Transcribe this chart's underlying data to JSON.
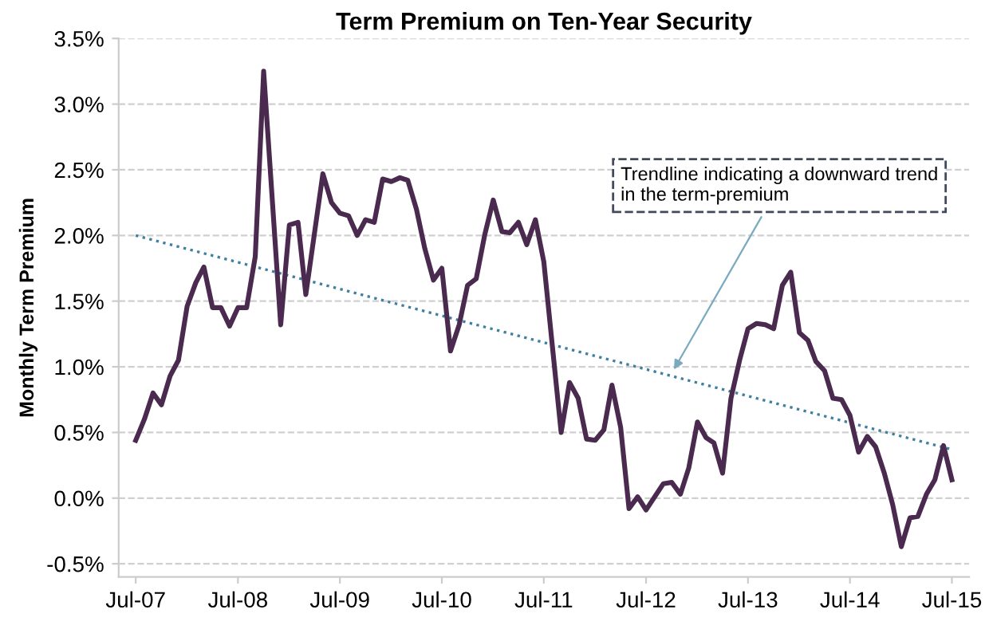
{
  "chart_data": {
    "type": "line",
    "title": "Term Premium on Ten-Year Security",
    "ylabel": "Monthly Term Premium",
    "xlim": [
      "2007-05",
      "2015-09"
    ],
    "ylim": [
      -0.6,
      3.5
    ],
    "xticks": [
      {
        "value": "2007-07",
        "label": "Jul-07"
      },
      {
        "value": "2008-07",
        "label": "Jul-08"
      },
      {
        "value": "2009-07",
        "label": "Jul-09"
      },
      {
        "value": "2010-07",
        "label": "Jul-10"
      },
      {
        "value": "2011-07",
        "label": "Jul-11"
      },
      {
        "value": "2012-07",
        "label": "Jul-12"
      },
      {
        "value": "2013-07",
        "label": "Jul-13"
      },
      {
        "value": "2014-07",
        "label": "Jul-14"
      },
      {
        "value": "2015-07",
        "label": "Jul-15"
      }
    ],
    "yticks": [
      {
        "value": -0.5,
        "label": "-0.5%"
      },
      {
        "value": 0,
        "label": "0.0%"
      },
      {
        "value": 0.5,
        "label": "0.5%"
      },
      {
        "value": 1,
        "label": "1.0%"
      },
      {
        "value": 1.5,
        "label": "1.5%"
      },
      {
        "value": 2,
        "label": "2.0%"
      },
      {
        "value": 2.5,
        "label": "2.5%"
      },
      {
        "value": 3,
        "label": "3.0%"
      },
      {
        "value": 3.5,
        "label": "3.5%"
      }
    ],
    "grid": "y",
    "legend": false,
    "marker": "none",
    "series": [
      {
        "color": "#4b2a4f",
        "line_style": "solid",
        "x": [
          "2007-07",
          "2007-08",
          "2007-09",
          "2007-10",
          "2007-11",
          "2007-12",
          "2008-01",
          "2008-02",
          "2008-03",
          "2008-04",
          "2008-05",
          "2008-06",
          "2008-07",
          "2008-08",
          "2008-09",
          "2008-10",
          "2008-12",
          "2009-01",
          "2009-02",
          "2009-03",
          "2009-05",
          "2009-06",
          "2009-07",
          "2009-08",
          "2009-09",
          "2009-10",
          "2009-11",
          "2009-12",
          "2010-01",
          "2010-02",
          "2010-03",
          "2010-04",
          "2010-05",
          "2010-06",
          "2010-07",
          "2010-08",
          "2010-09",
          "2010-10",
          "2010-11",
          "2010-12",
          "2011-01",
          "2011-02",
          "2011-03",
          "2011-04",
          "2011-05",
          "2011-06",
          "2011-07",
          "2011-08",
          "2011-09",
          "2011-10",
          "2011-11",
          "2011-12",
          "2012-01",
          "2012-02",
          "2012-03",
          "2012-04",
          "2012-05",
          "2012-06",
          "2012-07",
          "2012-08",
          "2012-09",
          "2012-10",
          "2012-11",
          "2012-12",
          "2013-01",
          "2013-02",
          "2013-03",
          "2013-04",
          "2013-05",
          "2013-06",
          "2013-07",
          "2013-08",
          "2013-09",
          "2013-10",
          "2013-11",
          "2013-12",
          "2014-01",
          "2014-02",
          "2014-03",
          "2014-04",
          "2014-05",
          "2014-06",
          "2014-07",
          "2014-08",
          "2014-09",
          "2014-10",
          "2014-11",
          "2014-12",
          "2015-01",
          "2015-02",
          "2015-03",
          "2015-04",
          "2015-05",
          "2015-06",
          "2015-07"
        ],
        "values": [
          0.44,
          0.6,
          0.8,
          0.71,
          0.93,
          1.05,
          1.46,
          1.64,
          1.76,
          1.45,
          1.45,
          1.31,
          1.45,
          1.45,
          1.84,
          3.25,
          1.32,
          2.08,
          2.1,
          1.55,
          2.47,
          2.25,
          2.17,
          2.15,
          2.0,
          2.12,
          2.1,
          2.43,
          2.41,
          2.44,
          2.42,
          2.2,
          1.9,
          1.66,
          1.75,
          1.12,
          1.32,
          1.62,
          1.67,
          2.0,
          2.27,
          2.03,
          2.02,
          2.1,
          1.93,
          2.12,
          1.8,
          1.15,
          0.5,
          0.88,
          0.76,
          0.45,
          0.44,
          0.52,
          0.86,
          0.54,
          -0.08,
          0.01,
          -0.09,
          0.01,
          0.11,
          0.12,
          0.03,
          0.23,
          0.58,
          0.46,
          0.42,
          0.19,
          0.76,
          1.05,
          1.29,
          1.33,
          1.32,
          1.29,
          1.62,
          1.72,
          1.26,
          1.2,
          1.04,
          0.97,
          0.76,
          0.75,
          0.63,
          0.35,
          0.47,
          0.39,
          0.19,
          -0.05,
          -0.37,
          -0.15,
          -0.14,
          0.03,
          0.14,
          0.4,
          0.14
        ]
      },
      {
        "color": "#3f7f9f",
        "line_style": "dotted",
        "x": [
          "2007-07",
          "2015-07"
        ],
        "values": [
          2.0,
          0.37
        ]
      }
    ],
    "annotations": [
      {
        "text": "Trendline indicating a downward trend\nin the term-premium",
        "x": "2012-10",
        "y": 0.95
      }
    ]
  }
}
